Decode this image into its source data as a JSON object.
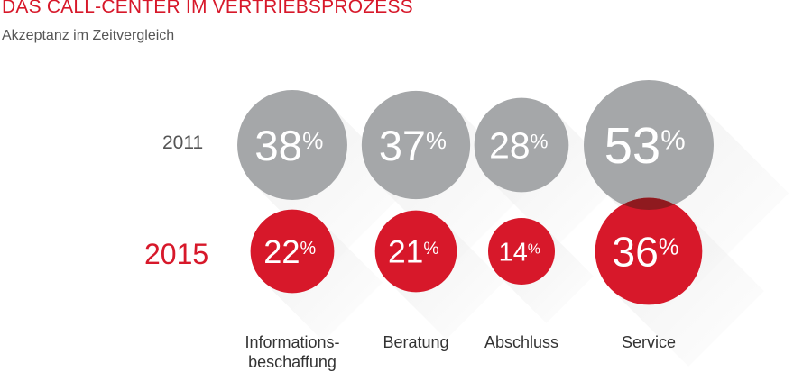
{
  "header": {
    "title": "DAS CALL-CENTER IM VERTRIEBSPROZESS",
    "subtitle": "Akzeptanz im Zeitvergleich"
  },
  "colors": {
    "accent_red": "#d7182a",
    "bubble_grey": "#a5a7a9",
    "overlap_grey": "#6b6c6e",
    "overlap_red": "#8f1a1f",
    "shadow": "#f0f0f0",
    "text_grey": "#555555"
  },
  "chart_data": {
    "type": "bubble",
    "categories": [
      "Informations-\nbeschaffung",
      "Beratung",
      "Abschluss",
      "Service"
    ],
    "series": [
      {
        "name": "2011",
        "values": [
          38,
          37,
          28,
          53
        ],
        "labels": [
          "38%",
          "37%",
          "28%",
          "53%"
        ]
      },
      {
        "name": "2015",
        "values": [
          22,
          21,
          14,
          36
        ],
        "labels": [
          "22%",
          "21%",
          "14%",
          "36%"
        ]
      }
    ],
    "unit": "%"
  }
}
